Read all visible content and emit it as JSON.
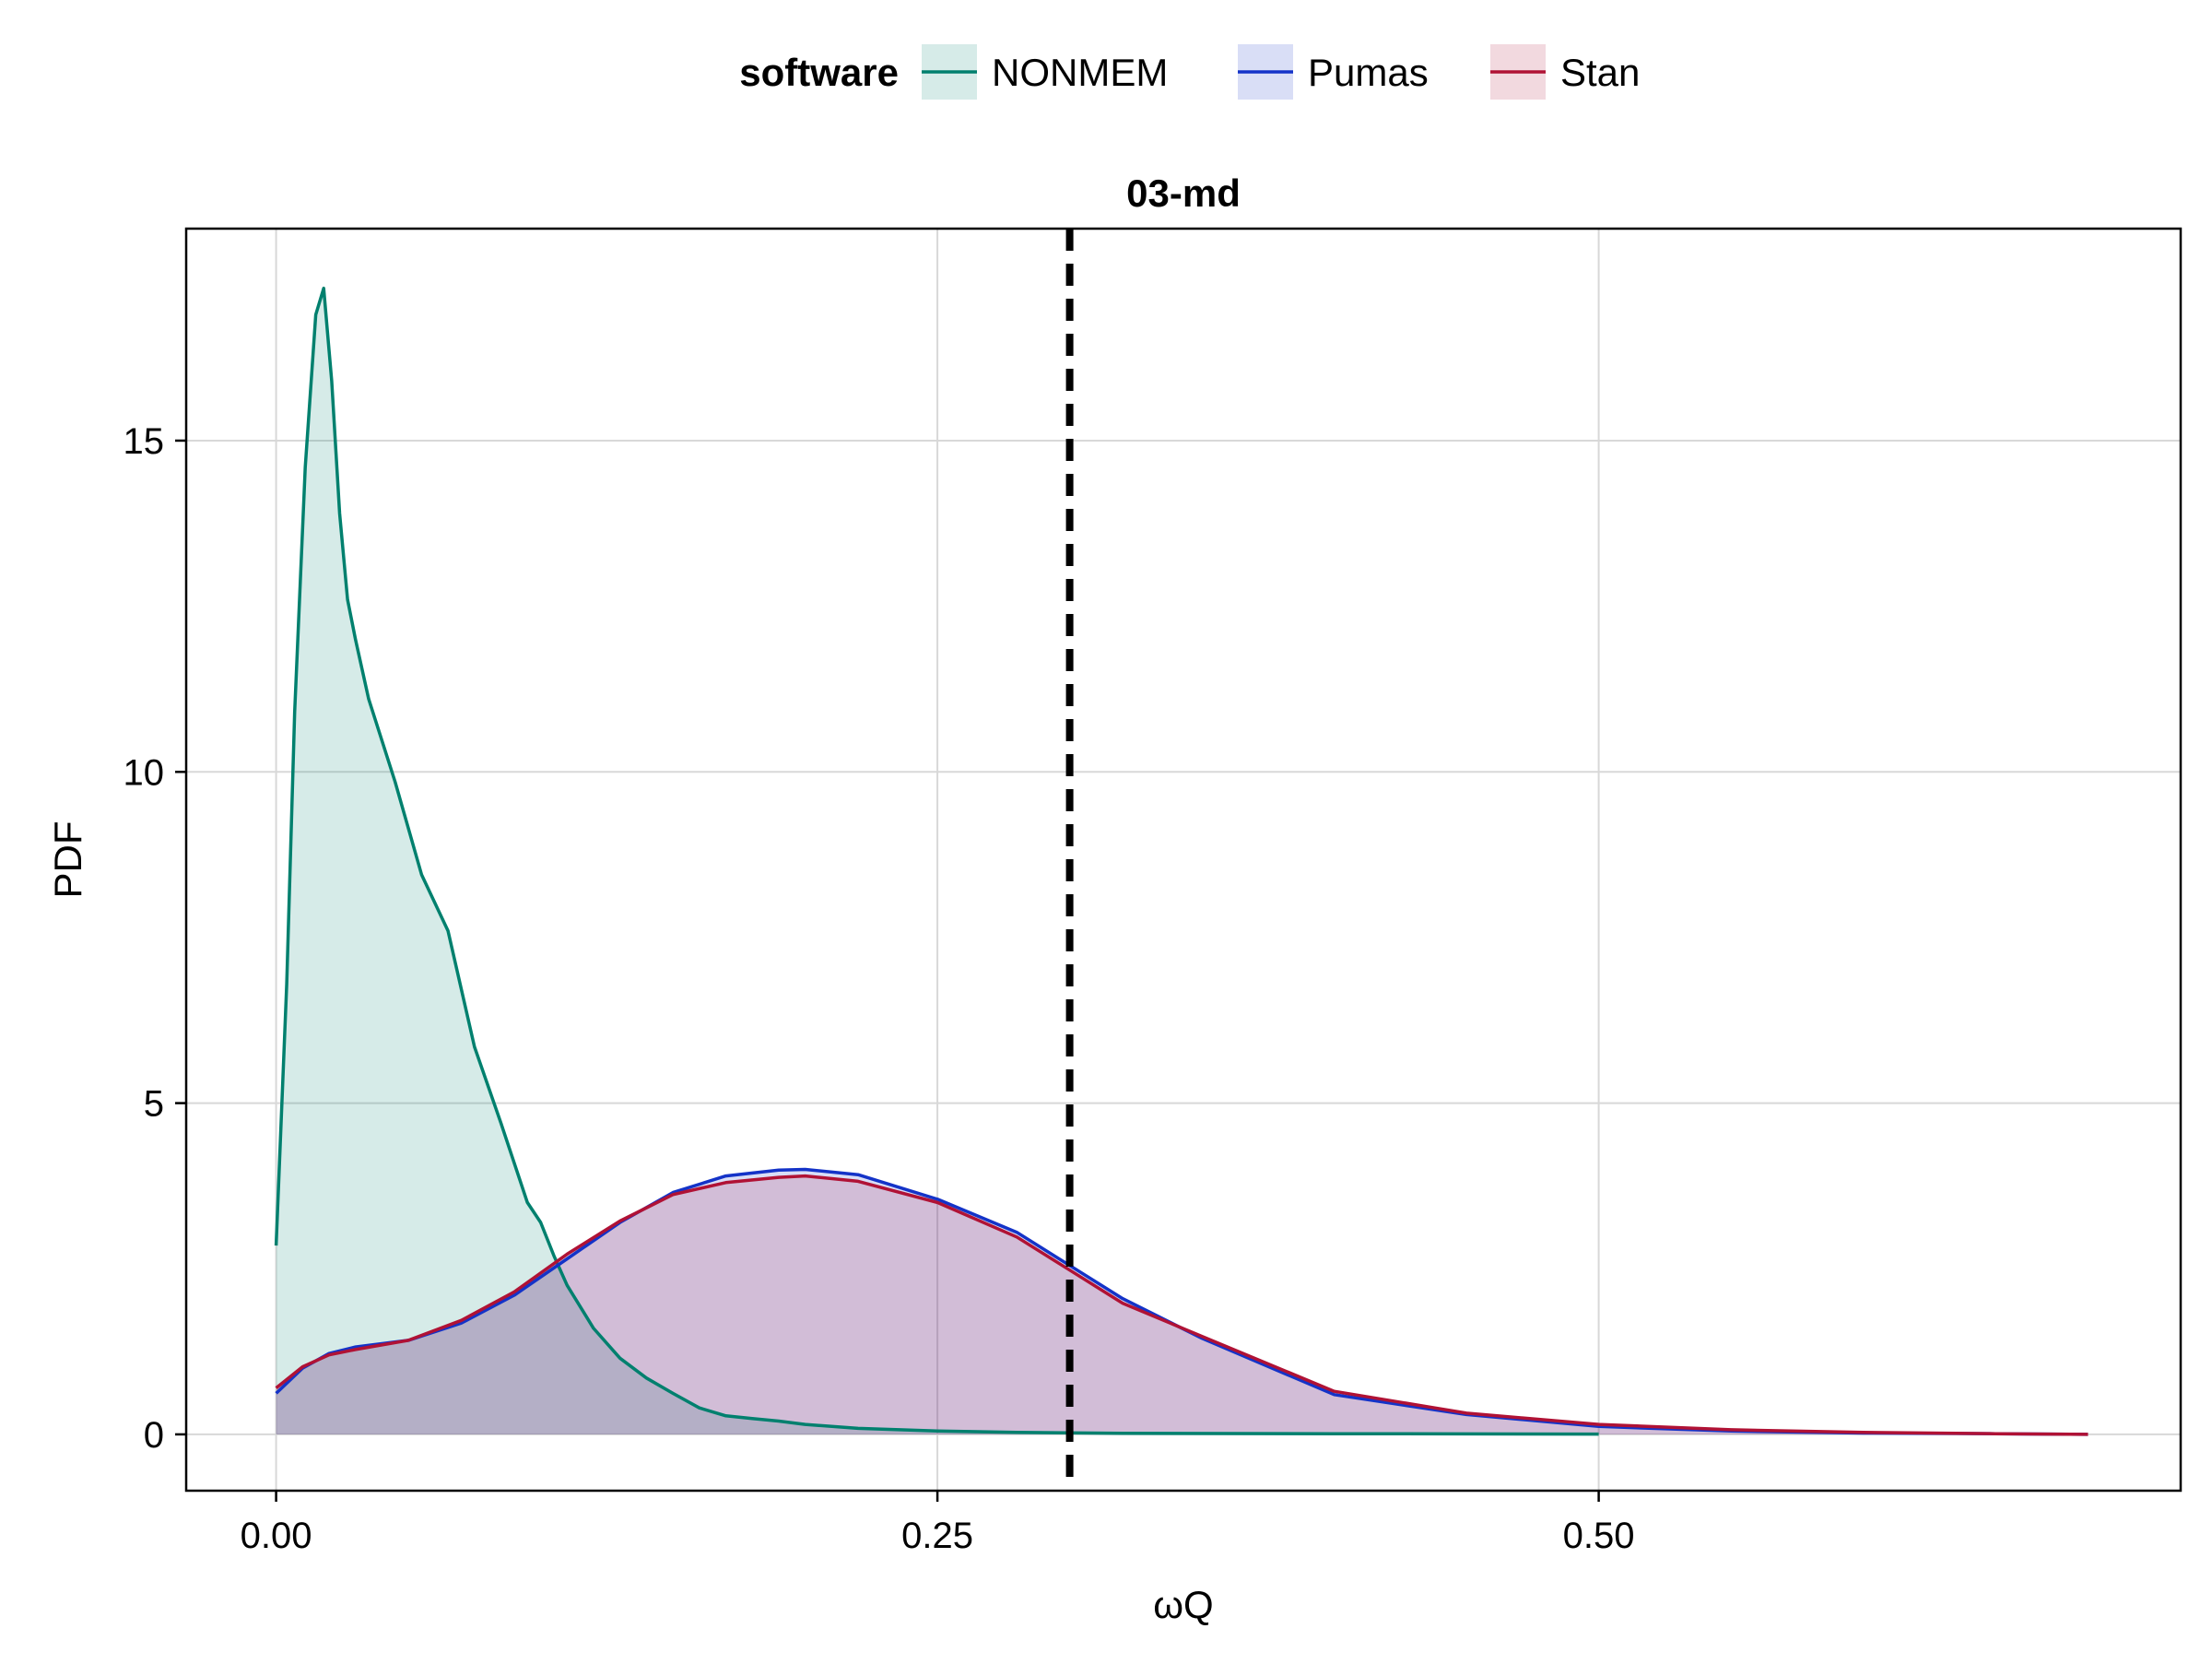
{
  "chart_data": {
    "type": "area",
    "title": "03-md",
    "xlabel": "ωQ",
    "ylabel": "PDF",
    "xlim": [
      -0.034,
      0.72
    ],
    "ylim": [
      -0.85,
      18.2
    ],
    "x_ticks": [
      0.0,
      0.25,
      0.5
    ],
    "x_tick_labels": [
      "0.00",
      "0.25",
      "0.50"
    ],
    "y_ticks": [
      0,
      5,
      10,
      15
    ],
    "y_tick_labels": [
      "0",
      "5",
      "10",
      "15"
    ],
    "grid": true,
    "legend": {
      "title": "software",
      "placement": "top-center"
    },
    "reference_line": {
      "x": 0.3,
      "style": "dashed",
      "color": "#000000"
    },
    "series": [
      {
        "name": "NONMEM",
        "color": "#00806e",
        "fill": "rgba(0,128,110,0.16)",
        "x": [
          0.0,
          0.004,
          0.007,
          0.011,
          0.015,
          0.018,
          0.021,
          0.024,
          0.027,
          0.03,
          0.035,
          0.045,
          0.055,
          0.065,
          0.075,
          0.085,
          0.095,
          0.1,
          0.105,
          0.11,
          0.12,
          0.13,
          0.14,
          0.15,
          0.16,
          0.17,
          0.18,
          0.19,
          0.2,
          0.22,
          0.25,
          0.28,
          0.32,
          0.4,
          0.5
        ],
        "values": [
          2.85,
          6.8,
          10.9,
          14.6,
          16.9,
          17.3,
          15.9,
          13.9,
          12.6,
          12.0,
          11.1,
          9.85,
          8.45,
          7.6,
          5.85,
          4.7,
          3.5,
          3.2,
          2.7,
          2.25,
          1.6,
          1.15,
          0.85,
          0.62,
          0.4,
          0.28,
          0.24,
          0.2,
          0.15,
          0.09,
          0.05,
          0.03,
          0.015,
          0.01,
          0.005
        ]
      },
      {
        "name": "Pumas",
        "color": "#1433c8",
        "fill": "rgba(20,51,200,0.16)",
        "x": [
          0.0,
          0.01,
          0.02,
          0.03,
          0.05,
          0.07,
          0.09,
          0.11,
          0.13,
          0.15,
          0.17,
          0.19,
          0.2,
          0.22,
          0.25,
          0.28,
          0.3,
          0.32,
          0.35,
          0.4,
          0.45,
          0.5,
          0.55,
          0.6,
          0.65,
          0.685
        ],
        "values": [
          0.62,
          1.0,
          1.22,
          1.32,
          1.42,
          1.68,
          2.1,
          2.65,
          3.2,
          3.65,
          3.9,
          3.99,
          4.0,
          3.92,
          3.55,
          3.05,
          2.55,
          2.05,
          1.45,
          0.6,
          0.3,
          0.12,
          0.05,
          0.02,
          0.01,
          0.0
        ]
      },
      {
        "name": "Stan",
        "color": "#b01235",
        "fill": "rgba(176,18,53,0.16)",
        "x": [
          0.0,
          0.01,
          0.02,
          0.03,
          0.05,
          0.07,
          0.09,
          0.11,
          0.13,
          0.15,
          0.17,
          0.19,
          0.2,
          0.22,
          0.25,
          0.28,
          0.3,
          0.32,
          0.35,
          0.4,
          0.45,
          0.5,
          0.55,
          0.6,
          0.65,
          0.685
        ],
        "values": [
          0.7,
          1.02,
          1.2,
          1.28,
          1.42,
          1.72,
          2.15,
          2.72,
          3.22,
          3.62,
          3.8,
          3.88,
          3.9,
          3.82,
          3.5,
          2.98,
          2.48,
          1.98,
          1.48,
          0.65,
          0.32,
          0.15,
          0.07,
          0.03,
          0.01,
          0.0
        ]
      }
    ]
  }
}
